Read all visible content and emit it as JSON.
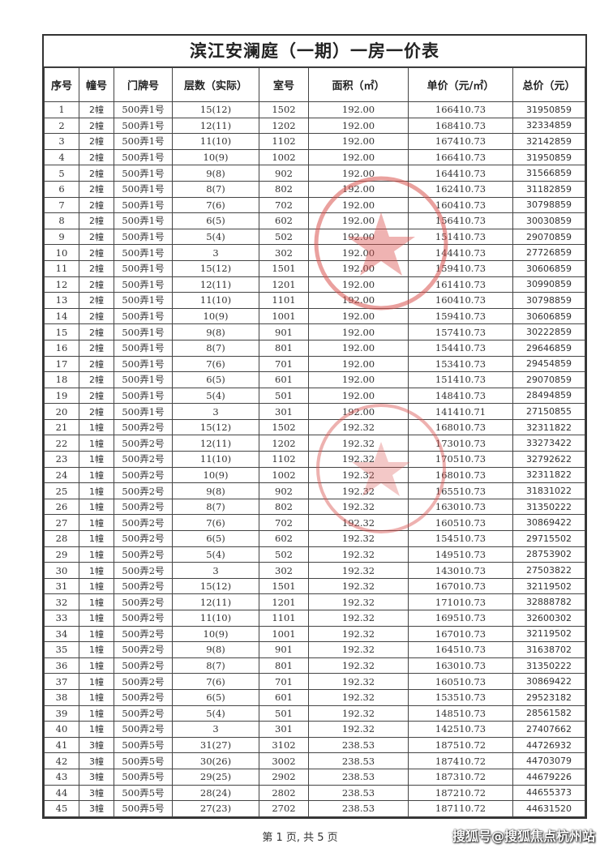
{
  "title": "滨江安澜庭（一期）一房一价表",
  "columns": [
    "序号",
    "幢号",
    "门牌号",
    "层数（实际）",
    "室号",
    "面积（㎡）",
    "单价（元/㎡）",
    "总价（元）"
  ],
  "rows": [
    [
      "1",
      "2幢",
      "500弄1号",
      "15(12)",
      "1502",
      "192.00",
      "166410.73",
      "31950859"
    ],
    [
      "2",
      "2幢",
      "500弄1号",
      "12(11)",
      "1202",
      "192.00",
      "168410.73",
      "32334859"
    ],
    [
      "3",
      "2幢",
      "500弄1号",
      "11(10)",
      "1102",
      "192.00",
      "167410.73",
      "32142859"
    ],
    [
      "4",
      "2幢",
      "500弄1号",
      "10(9)",
      "1002",
      "192.00",
      "166410.73",
      "31950859"
    ],
    [
      "5",
      "2幢",
      "500弄1号",
      "9(8)",
      "902",
      "192.00",
      "164410.73",
      "31566859"
    ],
    [
      "6",
      "2幢",
      "500弄1号",
      "8(7)",
      "802",
      "192.00",
      "162410.73",
      "31182859"
    ],
    [
      "7",
      "2幢",
      "500弄1号",
      "7(6)",
      "702",
      "192.00",
      "160410.73",
      "30798859"
    ],
    [
      "8",
      "2幢",
      "500弄1号",
      "6(5)",
      "602",
      "192.00",
      "156410.73",
      "30030859"
    ],
    [
      "9",
      "2幢",
      "500弄1号",
      "5(4)",
      "502",
      "192.00",
      "151410.73",
      "29070859"
    ],
    [
      "10",
      "2幢",
      "500弄1号",
      "3",
      "302",
      "192.00",
      "144410.73",
      "27726859"
    ],
    [
      "11",
      "2幢",
      "500弄1号",
      "15(12)",
      "1501",
      "192.00",
      "159410.73",
      "30606859"
    ],
    [
      "12",
      "2幢",
      "500弄1号",
      "12(11)",
      "1201",
      "192.00",
      "161410.73",
      "30990859"
    ],
    [
      "13",
      "2幢",
      "500弄1号",
      "11(10)",
      "1101",
      "192.00",
      "160410.73",
      "30798859"
    ],
    [
      "14",
      "2幢",
      "500弄1号",
      "10(9)",
      "1001",
      "192.00",
      "159410.73",
      "30606859"
    ],
    [
      "15",
      "2幢",
      "500弄1号",
      "9(8)",
      "901",
      "192.00",
      "157410.73",
      "30222859"
    ],
    [
      "16",
      "2幢",
      "500弄1号",
      "8(7)",
      "801",
      "192.00",
      "154410.73",
      "29646859"
    ],
    [
      "17",
      "2幢",
      "500弄1号",
      "7(6)",
      "701",
      "192.00",
      "153410.73",
      "29454859"
    ],
    [
      "18",
      "2幢",
      "500弄1号",
      "6(5)",
      "601",
      "192.00",
      "151410.73",
      "29070859"
    ],
    [
      "19",
      "2幢",
      "500弄1号",
      "5(4)",
      "501",
      "192.00",
      "148410.73",
      "28494859"
    ],
    [
      "20",
      "2幢",
      "500弄1号",
      "3",
      "301",
      "192.00",
      "141410.71",
      "27150855"
    ],
    [
      "21",
      "1幢",
      "500弄2号",
      "15(12)",
      "1502",
      "192.32",
      "168010.73",
      "32311822"
    ],
    [
      "22",
      "1幢",
      "500弄2号",
      "12(11)",
      "1202",
      "192.32",
      "173010.73",
      "33273422"
    ],
    [
      "23",
      "1幢",
      "500弄2号",
      "11(10)",
      "1102",
      "192.32",
      "170510.73",
      "32792622"
    ],
    [
      "24",
      "1幢",
      "500弄2号",
      "10(9)",
      "1002",
      "192.32",
      "168010.73",
      "32311822"
    ],
    [
      "25",
      "1幢",
      "500弄2号",
      "9(8)",
      "902",
      "192.32",
      "165510.73",
      "31831022"
    ],
    [
      "26",
      "1幢",
      "500弄2号",
      "8(7)",
      "802",
      "192.32",
      "163010.73",
      "31350222"
    ],
    [
      "27",
      "1幢",
      "500弄2号",
      "7(6)",
      "702",
      "192.32",
      "160510.73",
      "30869422"
    ],
    [
      "28",
      "1幢",
      "500弄2号",
      "6(5)",
      "602",
      "192.32",
      "154510.73",
      "29715502"
    ],
    [
      "29",
      "1幢",
      "500弄2号",
      "5(4)",
      "502",
      "192.32",
      "149510.73",
      "28753902"
    ],
    [
      "30",
      "1幢",
      "500弄2号",
      "3",
      "302",
      "192.32",
      "143010.73",
      "27503822"
    ],
    [
      "31",
      "1幢",
      "500弄2号",
      "15(12)",
      "1501",
      "192.32",
      "167010.73",
      "32119502"
    ],
    [
      "32",
      "1幢",
      "500弄2号",
      "12(11)",
      "1201",
      "192.32",
      "171010.73",
      "32888782"
    ],
    [
      "33",
      "1幢",
      "500弄2号",
      "11(10)",
      "1101",
      "192.32",
      "169510.73",
      "32600302"
    ],
    [
      "34",
      "1幢",
      "500弄2号",
      "10(9)",
      "1001",
      "192.32",
      "167010.73",
      "32119502"
    ],
    [
      "35",
      "1幢",
      "500弄2号",
      "9(8)",
      "901",
      "192.32",
      "164510.73",
      "31638702"
    ],
    [
      "36",
      "1幢",
      "500弄2号",
      "8(7)",
      "801",
      "192.32",
      "163010.73",
      "31350222"
    ],
    [
      "37",
      "1幢",
      "500弄2号",
      "7(6)",
      "701",
      "192.32",
      "160510.73",
      "30869422"
    ],
    [
      "38",
      "1幢",
      "500弄2号",
      "6(5)",
      "601",
      "192.32",
      "153510.73",
      "29523182"
    ],
    [
      "39",
      "1幢",
      "500弄2号",
      "5(4)",
      "501",
      "192.32",
      "148510.73",
      "28561582"
    ],
    [
      "40",
      "1幢",
      "500弄2号",
      "3",
      "301",
      "192.32",
      "142510.73",
      "27407662"
    ],
    [
      "41",
      "3幢",
      "500弄5号",
      "31(27)",
      "3102",
      "238.53",
      "187510.72",
      "44726932"
    ],
    [
      "42",
      "3幢",
      "500弄5号",
      "30(26)",
      "3002",
      "238.53",
      "187410.72",
      "44703079"
    ],
    [
      "43",
      "3幢",
      "500弄5号",
      "29(25)",
      "2902",
      "238.53",
      "187310.72",
      "44679226"
    ],
    [
      "44",
      "3幢",
      "500弄5号",
      "28(24)",
      "2802",
      "238.53",
      "187210.72",
      "44655373"
    ],
    [
      "45",
      "3幢",
      "500弄5号",
      "27(23)",
      "2702",
      "238.53",
      "187110.72",
      "44631520"
    ]
  ],
  "footer": "第 1 页, 共 5 页",
  "watermark": "搜狐号@搜狐焦点杭州站",
  "stamp_color": "#d9534f"
}
